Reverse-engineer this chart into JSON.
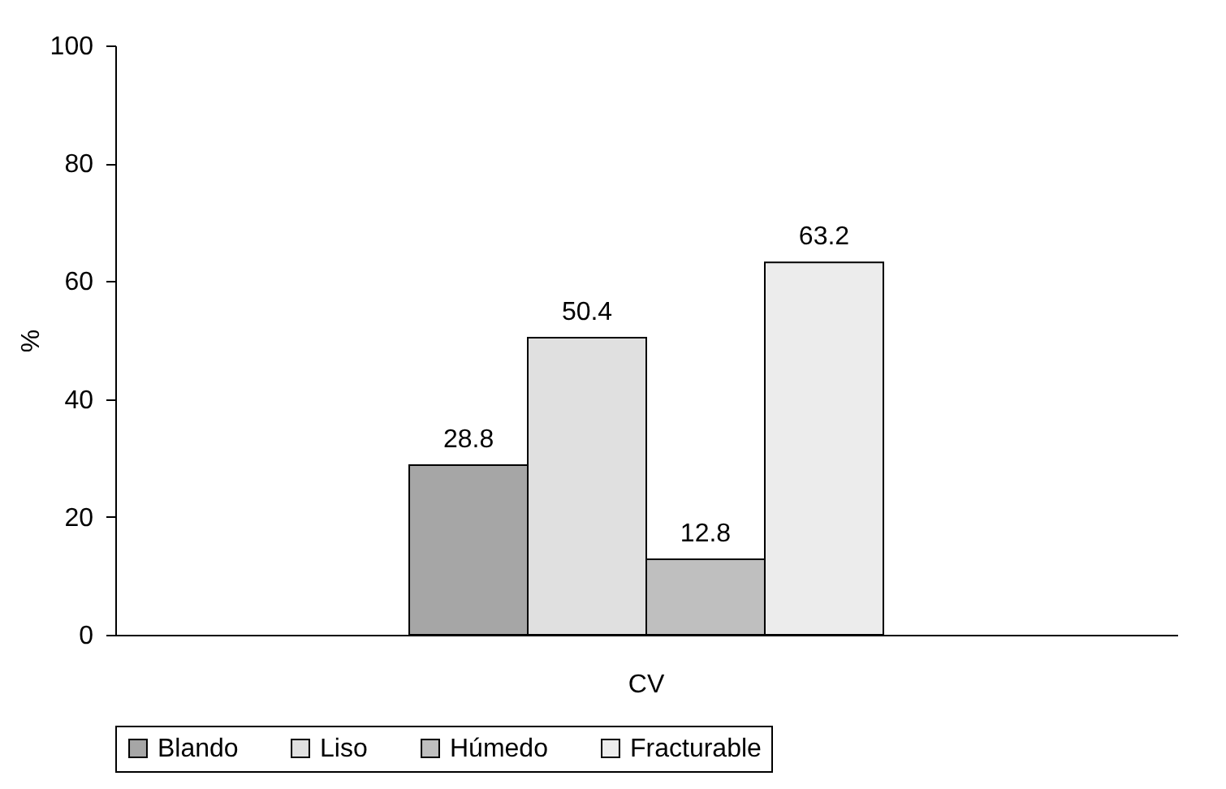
{
  "chart_data": {
    "type": "bar",
    "categories": [
      "CV"
    ],
    "ylabel": "%",
    "series": [
      {
        "name": "Blando",
        "color": "#a6a6a6",
        "values": [
          28.8
        ]
      },
      {
        "name": "Liso",
        "color": "#e0e0e0",
        "values": [
          50.4
        ]
      },
      {
        "name": "Húmedo",
        "color": "#bfbfbf",
        "values": [
          12.8
        ]
      },
      {
        "name": "Fracturable",
        "color": "#ececec",
        "values": [
          63.2
        ]
      }
    ],
    "ylim": [
      0,
      100
    ],
    "yticks": [
      0,
      20,
      40,
      60,
      80,
      100
    ],
    "grid": false,
    "legend": "bottom",
    "data_labels": true
  }
}
